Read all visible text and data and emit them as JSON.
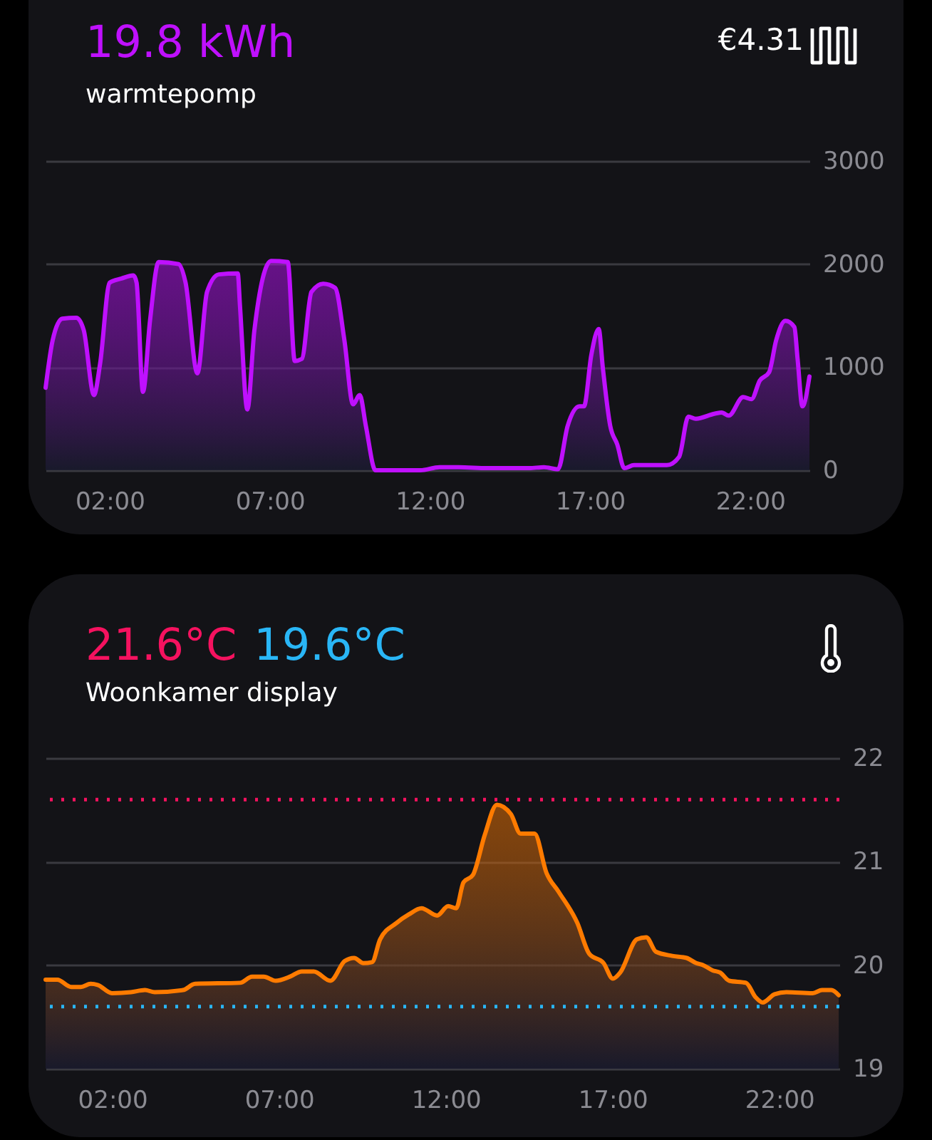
{
  "chart_data": [
    {
      "type": "area",
      "title": "19.8 kWh",
      "subtitle": "warmtepomp",
      "annotations": [
        "€4.31"
      ],
      "xlim": [
        0,
        23.85
      ],
      "xticks": [
        {
          "value": 2,
          "label": "02:00"
        },
        {
          "value": 7,
          "label": "07:00"
        },
        {
          "value": 12,
          "label": "12:00"
        },
        {
          "value": 17,
          "label": "17:00"
        },
        {
          "value": 22,
          "label": "22:00"
        }
      ],
      "ylim": [
        0,
        3000
      ],
      "yticks": [
        0,
        1000,
        2000,
        3000
      ],
      "grid": "y",
      "x": [
        0,
        0.22,
        0.52,
        0.96,
        1.19,
        1.51,
        1.7,
        2.0,
        2.37,
        2.74,
        2.84,
        3.04,
        3.26,
        3.53,
        4.15,
        4.37,
        4.74,
        5.04,
        5.41,
        6.0,
        6.07,
        6.3,
        6.52,
        7.04,
        7.56,
        7.78,
        8.0,
        8.3,
        8.67,
        9.04,
        9.33,
        9.6,
        9.81,
        10.0,
        10.3,
        11.7,
        12.3,
        12.9,
        13.8,
        15.1,
        15.56,
        16.0,
        16.3,
        16.67,
        16.81,
        17.04,
        17.27,
        17.4,
        17.63,
        17.85,
        18.07,
        18.37,
        19.4,
        19.78,
        20.07,
        20.3,
        20.9,
        21.11,
        21.33,
        21.78,
        22.04,
        22.3,
        22.59,
        22.81,
        23.1,
        23.38,
        23.48,
        23.63,
        23.85
      ],
      "series": [
        {
          "color": "#bf10ff",
          "values": [
            800,
            1260,
            1470,
            1480,
            1360,
            730,
            1030,
            1820,
            1860,
            1890,
            1820,
            760,
            1450,
            2020,
            2000,
            1820,
            940,
            1730,
            1900,
            1910,
            1590,
            590,
            1360,
            2030,
            2020,
            1060,
            1080,
            1730,
            1810,
            1770,
            1260,
            640,
            730,
            430,
            0,
            0,
            30,
            30,
            20,
            20,
            30,
            10,
            430,
            620,
            620,
            1120,
            1370,
            990,
            430,
            250,
            20,
            50,
            50,
            130,
            520,
            500,
            550,
            560,
            530,
            710,
            690,
            870,
            950,
            1260,
            1450,
            1390,
            1080,
            620,
            910
          ]
        }
      ]
    },
    {
      "type": "area",
      "subtitle": "Woonkamer display",
      "xlim": [
        0,
        23.8
      ],
      "xticks": [
        {
          "value": 2,
          "label": "02:00"
        },
        {
          "value": 7,
          "label": "07:00"
        },
        {
          "value": 12,
          "label": "12:00"
        },
        {
          "value": 17,
          "label": "17:00"
        },
        {
          "value": 22,
          "label": "22:00"
        }
      ],
      "ylim": [
        19,
        22
      ],
      "yticks": [
        19,
        20,
        21,
        22
      ],
      "grid": "y",
      "ref_lines": [
        {
          "axis": "y",
          "value": 21.6,
          "label": "21.6°C",
          "color": "#f5125f",
          "line_style": "dotted"
        },
        {
          "axis": "y",
          "value": 19.6,
          "label": "19.6°C",
          "color": "#29b6f6",
          "line_style": "dotted"
        }
      ],
      "x": [
        0,
        0.35,
        0.77,
        1.06,
        1.35,
        1.56,
        1.99,
        2.56,
        2.98,
        3.27,
        4.12,
        4.48,
        5.83,
        6.19,
        6.54,
        6.9,
        7.33,
        7.68,
        8.04,
        8.54,
        8.97,
        9.25,
        9.53,
        9.79,
        10.03,
        10.53,
        10.89,
        11.27,
        11.74,
        12.07,
        12.31,
        12.53,
        12.81,
        13.17,
        13.53,
        13.95,
        14.24,
        14.66,
        15.02,
        15.38,
        15.94,
        16.3,
        16.73,
        17.01,
        17.23,
        17.73,
        18.01,
        18.3,
        18.79,
        19.22,
        19.51,
        19.72,
        20.0,
        20.22,
        20.5,
        21.0,
        21.29,
        21.5,
        21.86,
        22.21,
        23.0,
        23.28,
        23.56,
        23.78
      ],
      "series": [
        {
          "color": "#ff7b00",
          "values": [
            19.86,
            19.86,
            19.79,
            19.79,
            19.82,
            19.81,
            19.73,
            19.74,
            19.76,
            19.74,
            19.76,
            19.82,
            19.83,
            19.89,
            19.89,
            19.85,
            19.89,
            19.94,
            19.94,
            19.85,
            20.04,
            20.07,
            20.02,
            20.03,
            20.25,
            20.41,
            20.49,
            20.55,
            20.48,
            20.57,
            20.55,
            20.8,
            20.87,
            21.26,
            21.55,
            21.46,
            21.27,
            21.27,
            20.89,
            20.71,
            20.41,
            20.11,
            20.02,
            19.87,
            19.93,
            20.25,
            20.27,
            20.13,
            20.09,
            20.07,
            20.02,
            20.0,
            19.95,
            19.93,
            19.85,
            19.83,
            19.69,
            19.64,
            19.72,
            19.74,
            19.73,
            19.76,
            19.76,
            19.71
          ]
        }
      ]
    }
  ]
}
